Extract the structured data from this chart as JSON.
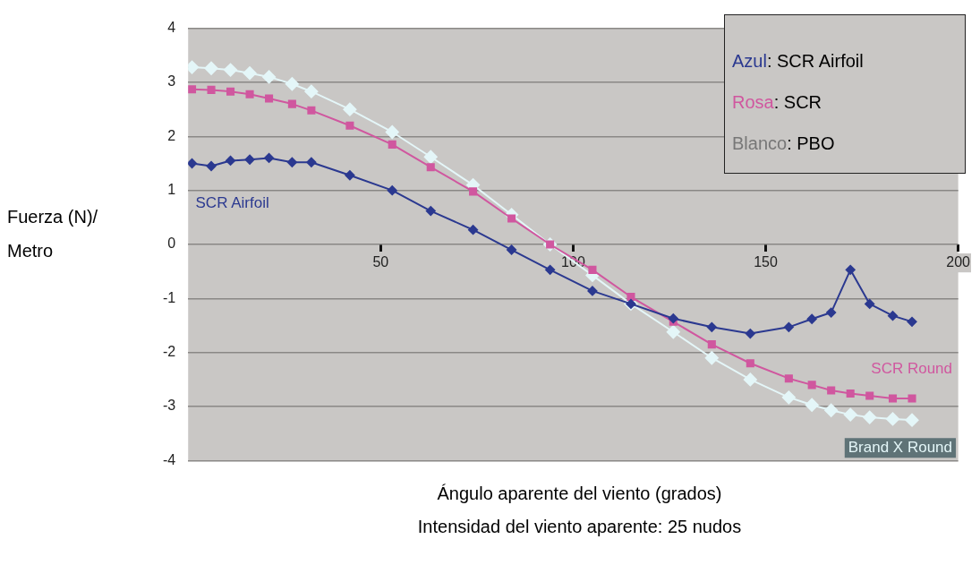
{
  "chart_data": {
    "type": "line",
    "xlabel": "Ángulo aparente del viento (grados)",
    "ylabel": "Fuerza (N)/ Metro",
    "annotations": [
      "Azul: SCR Airfoil",
      "Rosa: SCR",
      "Blanco: PBO",
      "Intensidad del viento aparente: 25 nudos"
    ],
    "x": [
      1,
      6,
      11,
      16,
      21,
      27,
      32,
      42,
      53,
      63,
      74,
      84,
      94,
      105,
      115,
      126,
      136,
      146,
      156,
      162,
      167,
      172,
      177,
      183,
      188
    ],
    "xlim": [
      0,
      200
    ],
    "xticks": [
      50,
      100,
      150,
      200
    ],
    "ylim": [
      -4,
      4
    ],
    "yticks": [
      -4,
      -3,
      -2,
      -1,
      0,
      1,
      2,
      3,
      4
    ],
    "grid": "y",
    "legend": false,
    "series": [
      {
        "name": "SCR Airfoil",
        "color": "#2b3990",
        "marker": "diamond",
        "values": [
          1.5,
          1.45,
          1.55,
          1.57,
          1.6,
          1.52,
          1.52,
          1.28,
          1.0,
          0.62,
          0.27,
          -0.1,
          -0.47,
          -0.86,
          -1.1,
          -1.37,
          -1.53,
          -1.65,
          -1.53,
          -1.38,
          -1.26,
          -0.47,
          -1.1,
          -1.32,
          -1.43
        ]
      },
      {
        "name": "SCR Round",
        "color": "#d0579f",
        "marker": "square",
        "values": [
          2.87,
          2.86,
          2.83,
          2.78,
          2.7,
          2.6,
          2.48,
          2.2,
          1.85,
          1.43,
          0.98,
          0.48,
          0,
          -0.47,
          -0.97,
          -1.43,
          -1.85,
          -2.2,
          -2.48,
          -2.6,
          -2.7,
          -2.76,
          -2.8,
          -2.85,
          -2.85
        ]
      },
      {
        "name": "Brand X Round",
        "color": "#e4f6f8",
        "marker": "diamond",
        "values": [
          3.28,
          3.26,
          3.23,
          3.17,
          3.1,
          2.97,
          2.83,
          2.5,
          2.08,
          1.62,
          1.1,
          0.55,
          0,
          -0.57,
          -1.1,
          -1.62,
          -2.1,
          -2.5,
          -2.83,
          -2.97,
          -3.07,
          -3.15,
          -3.2,
          -3.23,
          -3.25
        ]
      }
    ]
  }
}
